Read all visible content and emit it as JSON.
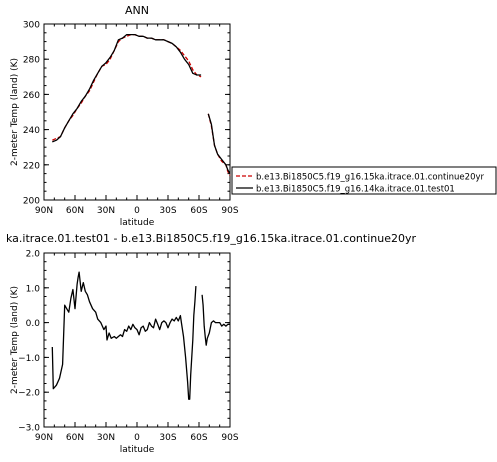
{
  "figure": {
    "title": "ANN",
    "diff_title": "ka.itrace.01.test01  -  b.e13.Bi1850C5.f19_g16.15ka.itrace.01.continue20yr"
  },
  "chart_data": [
    {
      "type": "line",
      "title": "ANN",
      "xlabel": "latitude",
      "ylabel": "2-meter Temp (land) (K)",
      "xlim": [
        90,
        -90
      ],
      "ylim": [
        200,
        300
      ],
      "x_ticks": [
        90,
        60,
        30,
        0,
        -30,
        -60,
        -90
      ],
      "x_ticklabels": [
        "90N",
        "60N",
        "30N",
        "0",
        "30S",
        "60S",
        "90S"
      ],
      "y_ticks": [
        200,
        220,
        240,
        260,
        280,
        300
      ],
      "y_ticklabels": [
        "200",
        "220",
        "240",
        "260",
        "280",
        "300"
      ],
      "legend_position": "right",
      "series": [
        {
          "name": "b.e13.Bi1850C5.f19_g16.15ka.itrace.01.continue20yr",
          "color": "#cc0000",
          "dash": "4,2",
          "segments": [
            [
              [
                82,
                234
              ],
              [
                78,
                235
              ],
              [
                74,
                236
              ],
              [
                70,
                241
              ],
              [
                66,
                245
              ],
              [
                62,
                248
              ],
              [
                58,
                252
              ],
              [
                54,
                255
              ],
              [
                50,
                259
              ],
              [
                46,
                262
              ],
              [
                42,
                267
              ],
              [
                38,
                272
              ],
              [
                34,
                276
              ],
              [
                30,
                277
              ],
              [
                26,
                280
              ],
              [
                22,
                285
              ],
              [
                18,
                290
              ],
              [
                14,
                292
              ],
              [
                10,
                293
              ],
              [
                6,
                294
              ],
              [
                2,
                294
              ],
              [
                -2,
                293
              ],
              [
                -6,
                293
              ],
              [
                -10,
                292
              ],
              [
                -14,
                292
              ],
              [
                -18,
                291
              ],
              [
                -22,
                291
              ],
              [
                -26,
                291
              ],
              [
                -30,
                290
              ],
              [
                -34,
                289
              ],
              [
                -38,
                287
              ],
              [
                -42,
                285
              ],
              [
                -46,
                282
              ],
              [
                -50,
                279
              ],
              [
                -54,
                274
              ],
              [
                -58,
                271
              ],
              [
                -62,
                270
              ]
            ],
            [
              [
                -69,
                249
              ],
              [
                -72,
                242
              ],
              [
                -75,
                231
              ],
              [
                -78,
                226
              ],
              [
                -82,
                222
              ],
              [
                -86,
                220
              ],
              [
                -88,
                216
              ],
              [
                -90,
                214
              ]
            ]
          ]
        },
        {
          "name": "b.e13.Bi1850C5.f19_g16.14ka.itrace.01.test01",
          "color": "#000000",
          "dash": "",
          "segments": [
            [
              [
                82,
                233
              ],
              [
                78,
                234
              ],
              [
                74,
                236
              ],
              [
                70,
                241
              ],
              [
                66,
                245
              ],
              [
                62,
                249
              ],
              [
                58,
                252
              ],
              [
                54,
                256
              ],
              [
                50,
                259
              ],
              [
                46,
                263
              ],
              [
                42,
                268
              ],
              [
                38,
                272
              ],
              [
                34,
                276
              ],
              [
                30,
                278
              ],
              [
                26,
                281
              ],
              [
                22,
                285
              ],
              [
                18,
                291
              ],
              [
                14,
                292
              ],
              [
                10,
                294
              ],
              [
                6,
                294
              ],
              [
                2,
                294
              ],
              [
                -2,
                293
              ],
              [
                -6,
                293
              ],
              [
                -10,
                292
              ],
              [
                -14,
                292
              ],
              [
                -18,
                291
              ],
              [
                -22,
                291
              ],
              [
                -26,
                291
              ],
              [
                -30,
                290
              ],
              [
                -34,
                289
              ],
              [
                -38,
                287
              ],
              [
                -42,
                284
              ],
              [
                -46,
                280
              ],
              [
                -50,
                277
              ],
              [
                -54,
                272
              ],
              [
                -58,
                271
              ],
              [
                -62,
                271
              ]
            ],
            [
              [
                -69,
                249
              ],
              [
                -72,
                243
              ],
              [
                -75,
                231
              ],
              [
                -78,
                226
              ],
              [
                -82,
                223
              ],
              [
                -86,
                220
              ],
              [
                -88,
                217
              ],
              [
                -90,
                215
              ]
            ]
          ]
        }
      ]
    },
    {
      "type": "line",
      "title": "ka.itrace.01.test01  -  b.e13.Bi1850C5.f19_g16.15ka.itrace.01.continue20yr",
      "xlabel": "latitude",
      "ylabel": "2-meter Temp (land) (K)",
      "xlim": [
        90,
        -90
      ],
      "ylim": [
        -3.0,
        2.0
      ],
      "x_ticks": [
        90,
        60,
        30,
        0,
        -30,
        -60,
        -90
      ],
      "x_ticklabels": [
        "90N",
        "60N",
        "30N",
        "0",
        "30S",
        "60S",
        "90S"
      ],
      "y_ticks": [
        2.0,
        1.0,
        0.0,
        -1.0,
        -2.0,
        -3.0
      ],
      "y_ticklabels": [
        "2.0",
        "1.0",
        "0.0",
        "−1.0",
        "−2.0",
        "−3.0"
      ],
      "series": [
        {
          "name": "",
          "color": "#000000",
          "dash": "",
          "segments": [
            [
              [
                82,
                -0.7
              ],
              [
                81,
                -1.9
              ],
              [
                78,
                -1.8
              ],
              [
                75,
                -1.6
              ],
              [
                72,
                -1.2
              ],
              [
                70,
                0.5
              ],
              [
                68,
                0.4
              ],
              [
                66,
                0.3
              ],
              [
                64,
                0.7
              ],
              [
                62,
                0.95
              ],
              [
                60,
                0.4
              ],
              [
                58,
                1.1
              ],
              [
                57,
                1.3
              ],
              [
                56,
                1.45
              ],
              [
                54,
                0.9
              ],
              [
                52,
                1.15
              ],
              [
                50,
                0.9
              ],
              [
                48,
                0.8
              ],
              [
                46,
                0.6
              ],
              [
                43,
                0.4
              ],
              [
                40,
                0.3
              ],
              [
                38,
                0.1
              ],
              [
                35,
                0.0
              ],
              [
                32,
                -0.2
              ],
              [
                30,
                -0.1
              ],
              [
                29,
                -0.5
              ],
              [
                27,
                -0.3
              ],
              [
                25,
                -0.45
              ],
              [
                22,
                -0.4
              ],
              [
                20,
                -0.45
              ],
              [
                18,
                -0.4
              ],
              [
                16,
                -0.35
              ],
              [
                14,
                -0.4
              ],
              [
                12,
                -0.2
              ],
              [
                10,
                -0.25
              ],
              [
                8,
                -0.1
              ],
              [
                6,
                -0.2
              ],
              [
                4,
                -0.05
              ],
              [
                2,
                -0.15
              ],
              [
                0,
                -0.2
              ],
              [
                -2,
                -0.35
              ],
              [
                -4,
                -0.15
              ],
              [
                -6,
                -0.1
              ],
              [
                -8,
                -0.25
              ],
              [
                -10,
                -0.2
              ],
              [
                -12,
                0.0
              ],
              [
                -14,
                -0.1
              ],
              [
                -16,
                -0.15
              ],
              [
                -18,
                0.1
              ],
              [
                -20,
                -0.05
              ],
              [
                -22,
                -0.2
              ],
              [
                -24,
                0.0
              ],
              [
                -26,
                0.05
              ],
              [
                -28,
                0.0
              ],
              [
                -30,
                -0.15
              ],
              [
                -32,
                0.0
              ],
              [
                -34,
                0.1
              ],
              [
                -36,
                0.05
              ],
              [
                -38,
                0.15
              ],
              [
                -40,
                0.05
              ],
              [
                -42,
                0.2
              ],
              [
                -43,
                0.0
              ],
              [
                -45,
                -0.4
              ],
              [
                -47,
                -1.0
              ],
              [
                -49,
                -1.7
              ],
              [
                -50,
                -2.2
              ],
              [
                -51,
                -2.2
              ],
              [
                -52,
                -1.5
              ],
              [
                -54,
                -0.5
              ],
              [
                -55,
                0.2
              ],
              [
                -56,
                0.6
              ],
              [
                -57,
                1.05
              ]
            ],
            [
              [
                -63,
                0.8
              ],
              [
                -64,
                0.5
              ],
              [
                -65,
                -0.1
              ],
              [
                -66,
                -0.4
              ],
              [
                -67,
                -0.65
              ],
              [
                -68,
                -0.45
              ],
              [
                -70,
                -0.3
              ],
              [
                -72,
                0.0
              ],
              [
                -74,
                0.05
              ],
              [
                -76,
                0.0
              ],
              [
                -78,
                0.0
              ],
              [
                -80,
                0.0
              ],
              [
                -82,
                -0.1
              ],
              [
                -84,
                -0.05
              ],
              [
                -86,
                -0.1
              ],
              [
                -88,
                -0.05
              ],
              [
                -90,
                -0.05
              ]
            ]
          ]
        }
      ]
    }
  ]
}
